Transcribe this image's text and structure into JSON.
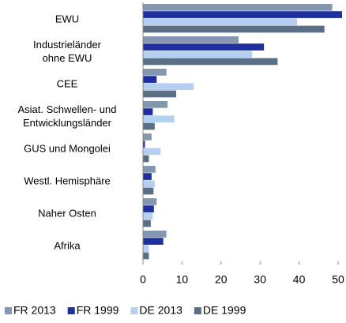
{
  "chart_data": {
    "type": "hbar",
    "categories": [
      "EWU",
      "Industrieländer\nohne EWU",
      "CEE",
      "Asiat. Schwellen- und\nEntwicklungsländer",
      "GUS und Mongolei",
      "Westl. Hemisphäre",
      "Naher Osten",
      "Afrika"
    ],
    "series": [
      {
        "name": "FR 2013",
        "color": "#8497b0",
        "values": [
          48.5,
          24.5,
          6,
          6.3,
          2.2,
          3.2,
          3.5,
          6
        ]
      },
      {
        "name": "FR 1999",
        "color": "#1f2f9e",
        "values": [
          51,
          31,
          3.5,
          2.5,
          0.5,
          2.2,
          2.8,
          5.2
        ]
      },
      {
        "name": "DE 2013",
        "color": "#b4cff0",
        "values": [
          39.5,
          28,
          13,
          8,
          4.5,
          3,
          2.5,
          1.5
        ]
      },
      {
        "name": "DE 1999",
        "color": "#5a6f85",
        "values": [
          46.5,
          34.5,
          8.5,
          3,
          1.5,
          2.7,
          2,
          1.5
        ]
      }
    ],
    "xlim": [
      0,
      51
    ],
    "xticks": [
      0,
      10,
      20,
      30,
      40,
      50
    ]
  }
}
